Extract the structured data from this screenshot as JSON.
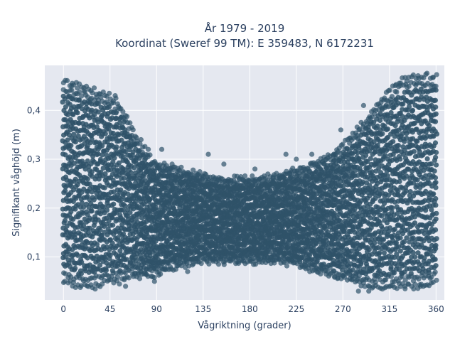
{
  "chart_data": {
    "type": "scatter",
    "title_line1": "År 1979 - 2019",
    "title_line2": "Koordinat (Sweref 99 TM): E 359483, N 6172231",
    "xlabel": "Vågriktning (grader)",
    "ylabel": "Signifikant våghöjd (m)",
    "xlim": [
      -18,
      368
    ],
    "ylim": [
      0.012,
      0.492
    ],
    "x_ticks": [
      {
        "value": 0,
        "label": "0"
      },
      {
        "value": 45,
        "label": "45"
      },
      {
        "value": 90,
        "label": "90"
      },
      {
        "value": 135,
        "label": "135"
      },
      {
        "value": 180,
        "label": "180"
      },
      {
        "value": 225,
        "label": "225"
      },
      {
        "value": 270,
        "label": "270"
      },
      {
        "value": 315,
        "label": "315"
      },
      {
        "value": 360,
        "label": "360"
      }
    ],
    "y_ticks": [
      {
        "value": 0.1,
        "label": "0,1"
      },
      {
        "value": 0.2,
        "label": "0,2"
      },
      {
        "value": 0.3,
        "label": "0,3"
      },
      {
        "value": 0.4,
        "label": "0,4"
      }
    ],
    "grid": true,
    "colors": {
      "marker": "#2f5269",
      "plot_bg": "#e5e8f0",
      "grid": "#ffffff",
      "text": "#2a3f5f"
    },
    "envelope": [
      {
        "x": 0,
        "low": 0.05,
        "high": 0.46
      },
      {
        "x": 15,
        "low": 0.04,
        "high": 0.45
      },
      {
        "x": 30,
        "low": 0.04,
        "high": 0.44
      },
      {
        "x": 45,
        "low": 0.05,
        "high": 0.43
      },
      {
        "x": 55,
        "low": 0.05,
        "high": 0.41
      },
      {
        "x": 65,
        "low": 0.06,
        "high": 0.37
      },
      {
        "x": 75,
        "low": 0.06,
        "high": 0.33
      },
      {
        "x": 85,
        "low": 0.06,
        "high": 0.3
      },
      {
        "x": 95,
        "low": 0.07,
        "high": 0.29
      },
      {
        "x": 110,
        "low": 0.08,
        "high": 0.28
      },
      {
        "x": 130,
        "low": 0.09,
        "high": 0.27
      },
      {
        "x": 150,
        "low": 0.09,
        "high": 0.26
      },
      {
        "x": 170,
        "low": 0.09,
        "high": 0.26
      },
      {
        "x": 190,
        "low": 0.09,
        "high": 0.26
      },
      {
        "x": 210,
        "low": 0.09,
        "high": 0.27
      },
      {
        "x": 230,
        "low": 0.08,
        "high": 0.28
      },
      {
        "x": 250,
        "low": 0.07,
        "high": 0.3
      },
      {
        "x": 265,
        "low": 0.06,
        "high": 0.32
      },
      {
        "x": 280,
        "low": 0.05,
        "high": 0.35
      },
      {
        "x": 295,
        "low": 0.04,
        "high": 0.39
      },
      {
        "x": 310,
        "low": 0.04,
        "high": 0.43
      },
      {
        "x": 325,
        "low": 0.04,
        "high": 0.46
      },
      {
        "x": 340,
        "low": 0.04,
        "high": 0.47
      },
      {
        "x": 355,
        "low": 0.04,
        "high": 0.47
      },
      {
        "x": 360,
        "low": 0.05,
        "high": 0.47
      }
    ],
    "outliers": [
      {
        "x": 8,
        "y": 0.45
      },
      {
        "x": 20,
        "y": 0.44
      },
      {
        "x": 50,
        "y": 0.43
      },
      {
        "x": 75,
        "y": 0.34
      },
      {
        "x": 82,
        "y": 0.32
      },
      {
        "x": 95,
        "y": 0.32
      },
      {
        "x": 105,
        "y": 0.29
      },
      {
        "x": 140,
        "y": 0.31
      },
      {
        "x": 155,
        "y": 0.29
      },
      {
        "x": 185,
        "y": 0.28
      },
      {
        "x": 215,
        "y": 0.31
      },
      {
        "x": 225,
        "y": 0.3
      },
      {
        "x": 240,
        "y": 0.31
      },
      {
        "x": 268,
        "y": 0.36
      },
      {
        "x": 290,
        "y": 0.41
      },
      {
        "x": 60,
        "y": 0.04
      },
      {
        "x": 88,
        "y": 0.05
      },
      {
        "x": 120,
        "y": 0.07
      },
      {
        "x": 245,
        "y": 0.07
      },
      {
        "x": 262,
        "y": 0.06
      },
      {
        "x": 285,
        "y": 0.03
      },
      {
        "x": 295,
        "y": 0.03
      },
      {
        "x": 330,
        "y": 0.04
      },
      {
        "x": 345,
        "y": 0.04
      }
    ]
  }
}
